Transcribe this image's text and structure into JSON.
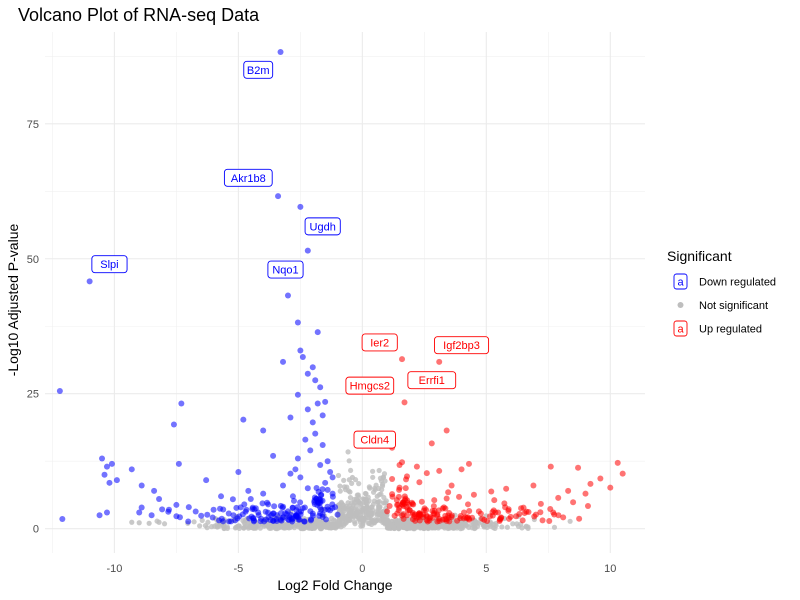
{
  "chart_data": {
    "type": "scatter",
    "title": "Volcano Plot of RNA-seq Data",
    "xlabel": "Log2 Fold Change",
    "ylabel": "-Log10 Adjusted P-value",
    "xlim": [
      -12.8,
      11.4
    ],
    "ylim": [
      -4.5,
      92
    ],
    "xticks": [
      -10,
      -5,
      0,
      5,
      10
    ],
    "xtick_labels": [
      "-10",
      "-5",
      "0",
      "5",
      "10"
    ],
    "yticks": [
      0,
      25,
      50,
      75
    ],
    "ytick_labels": [
      "0",
      "25",
      "50",
      "75"
    ],
    "grid": true,
    "legend": {
      "title": "Significant",
      "placement": "right",
      "entries": [
        {
          "label": "Down regulated",
          "color": "#0000ff",
          "glyph": "a"
        },
        {
          "label": "Not significant",
          "color": "#bebebe",
          "glyph": ""
        },
        {
          "label": "Up regulated",
          "color": "#ff0000",
          "glyph": "a"
        }
      ]
    },
    "colors": {
      "down": "#0000ff",
      "ns": "#bebebe",
      "up": "#ff0000"
    },
    "series": [
      {
        "name": "Down regulated",
        "points": [
          [
            -3.3,
            88.3
          ],
          [
            -3.4,
            61.6
          ],
          [
            -2.5,
            59.6
          ],
          [
            -2.2,
            51.5
          ],
          [
            -11.0,
            45.8
          ],
          [
            -3.0,
            43.2
          ],
          [
            -2.6,
            38.2
          ],
          [
            -1.8,
            36.4
          ],
          [
            -2.5,
            33.0
          ],
          [
            -2.4,
            31.8
          ],
          [
            -3.2,
            30.9
          ],
          [
            -2.0,
            29.9
          ],
          [
            -2.2,
            28.7
          ],
          [
            -1.9,
            27.5
          ],
          [
            -1.7,
            26.2
          ],
          [
            -2.6,
            24.8
          ],
          [
            -1.5,
            23.5
          ],
          [
            -1.8,
            23.2
          ],
          [
            -2.2,
            22.1
          ],
          [
            -7.3,
            23.2
          ],
          [
            -12.2,
            25.5
          ],
          [
            -4.8,
            20.2
          ],
          [
            -1.6,
            21.0
          ],
          [
            -2.9,
            20.6
          ],
          [
            -2.0,
            19.7
          ],
          [
            -7.6,
            19.3
          ],
          [
            -1.9,
            17.6
          ],
          [
            -2.3,
            16.5
          ],
          [
            -4.0,
            18.2
          ],
          [
            -10.3,
            11.5
          ],
          [
            -10.5,
            13.0
          ],
          [
            -10.1,
            12.0
          ],
          [
            -9.3,
            11.0
          ],
          [
            -10.4,
            10.0
          ],
          [
            -9.9,
            9.0
          ],
          [
            -10.2,
            8.5
          ],
          [
            -8.9,
            8.0
          ],
          [
            -8.4,
            7.0
          ],
          [
            -8.2,
            5.5
          ],
          [
            -10.3,
            3.0
          ],
          [
            -10.6,
            2.5
          ],
          [
            -12.1,
            1.8
          ],
          [
            -7.4,
            12.0
          ],
          [
            -5.0,
            10.5
          ],
          [
            -3.6,
            13.5
          ],
          [
            -2.7,
            11.0
          ],
          [
            -2.5,
            9.5
          ],
          [
            -2.1,
            14.5
          ],
          [
            -1.4,
            12.5
          ],
          [
            -1.6,
            15.5
          ],
          [
            -6.3,
            9.0
          ],
          [
            -4.6,
            7.0
          ],
          [
            -4.0,
            6.5
          ],
          [
            -3.2,
            8.0
          ],
          [
            -5.7,
            6.0
          ],
          [
            -7.8,
            3.5
          ],
          [
            -7.0,
            4.0
          ],
          [
            -6.0,
            3.5
          ],
          [
            -4.5,
            5.5
          ],
          [
            -3.8,
            4.5
          ],
          [
            -2.8,
            6.0
          ],
          [
            -2.2,
            7.5
          ],
          [
            -1.5,
            8.5
          ],
          [
            -1.3,
            10.5
          ],
          [
            -1.2,
            6.5
          ],
          [
            -1.8,
            5.0
          ],
          [
            -2.4,
            3.8
          ],
          [
            -3.0,
            3.2
          ],
          [
            -3.6,
            2.8
          ],
          [
            -4.2,
            3.0
          ],
          [
            -5.2,
            2.5
          ],
          [
            -6.5,
            2.4
          ],
          [
            -7.5,
            2.3
          ],
          [
            -8.5,
            2.5
          ],
          [
            -9.0,
            3.0
          ],
          [
            -1.1,
            4.0
          ],
          [
            -1.0,
            2.6
          ],
          [
            -1.3,
            3.4
          ],
          [
            -1.6,
            2.2
          ],
          [
            -2.0,
            2.8
          ],
          [
            -1.2,
            9.5
          ],
          [
            -1.4,
            7.2
          ],
          [
            -1.7,
            11.8
          ],
          [
            -2.6,
            13.0
          ],
          [
            -2.9,
            10.2
          ]
        ]
      },
      {
        "name": "Up regulated",
        "points": [
          [
            1.6,
            31.4
          ],
          [
            3.1,
            30.9
          ],
          [
            2.1,
            27.2
          ],
          [
            1.7,
            23.4
          ],
          [
            1.2,
            15.0
          ],
          [
            3.4,
            18.2
          ],
          [
            2.8,
            15.8
          ],
          [
            1.6,
            12.3
          ],
          [
            1.5,
            11.8
          ],
          [
            2.2,
            11.5
          ],
          [
            4.3,
            12.0
          ],
          [
            4.0,
            11.0
          ],
          [
            3.1,
            10.7
          ],
          [
            2.6,
            10.3
          ],
          [
            1.8,
            9.7
          ],
          [
            1.2,
            9.2
          ],
          [
            7.6,
            11.5
          ],
          [
            10.3,
            12.2
          ],
          [
            8.7,
            11.3
          ],
          [
            10.5,
            10.2
          ],
          [
            9.6,
            9.3
          ],
          [
            9.2,
            8.3
          ],
          [
            10.0,
            7.6
          ],
          [
            8.3,
            7.0
          ],
          [
            9.0,
            6.5
          ],
          [
            6.9,
            8.0
          ],
          [
            5.8,
            7.4
          ],
          [
            5.2,
            6.9
          ],
          [
            4.5,
            6.3
          ],
          [
            3.9,
            5.9
          ],
          [
            3.4,
            5.6
          ],
          [
            2.9,
            5.3
          ],
          [
            2.4,
            5.0
          ],
          [
            2.0,
            4.8
          ],
          [
            1.7,
            4.6
          ],
          [
            1.4,
            4.4
          ],
          [
            1.1,
            4.2
          ],
          [
            7.9,
            5.7
          ],
          [
            8.5,
            4.9
          ],
          [
            9.1,
            4.2
          ],
          [
            7.2,
            4.6
          ],
          [
            6.5,
            3.9
          ],
          [
            5.9,
            3.6
          ],
          [
            5.3,
            3.4
          ],
          [
            4.7,
            3.2
          ],
          [
            4.1,
            3.0
          ],
          [
            3.5,
            2.9
          ],
          [
            2.9,
            2.7
          ],
          [
            2.3,
            2.6
          ],
          [
            1.8,
            2.5
          ],
          [
            1.3,
            2.4
          ],
          [
            6.2,
            2.3
          ],
          [
            7.0,
            2.6
          ],
          [
            7.7,
            3.0
          ],
          [
            8.1,
            2.1
          ],
          [
            1.0,
            3.2
          ],
          [
            1.2,
            6.4
          ],
          [
            1.5,
            7.6
          ],
          [
            2.3,
            8.6
          ],
          [
            3.6,
            8.0
          ]
        ]
      }
    ],
    "labels": [
      {
        "gene": "B2m",
        "x": -4.2,
        "y": 85.0,
        "group": "down"
      },
      {
        "gene": "Akr1b8",
        "x": -4.6,
        "y": 65.0,
        "group": "down"
      },
      {
        "gene": "Ugdh",
        "x": -1.6,
        "y": 56.0,
        "group": "down"
      },
      {
        "gene": "Slpi",
        "x": -10.2,
        "y": 49.0,
        "group": "down"
      },
      {
        "gene": "Nqo1",
        "x": -3.1,
        "y": 48.0,
        "group": "down"
      },
      {
        "gene": "Ier2",
        "x": 0.7,
        "y": 34.5,
        "group": "up"
      },
      {
        "gene": "Igf2bp3",
        "x": 4.0,
        "y": 34.0,
        "group": "up"
      },
      {
        "gene": "Hmgcs2",
        "x": 0.3,
        "y": 26.5,
        "group": "up"
      },
      {
        "gene": "Errfi1",
        "x": 2.8,
        "y": 27.5,
        "group": "up"
      },
      {
        "gene": "Cldn4",
        "x": 0.5,
        "y": 16.5,
        "group": "up"
      }
    ]
  }
}
